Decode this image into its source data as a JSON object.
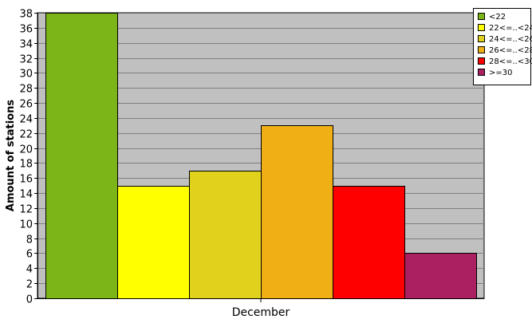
{
  "chart_data": {
    "type": "bar",
    "title": "",
    "xlabel": "",
    "ylabel": "Amount of stations",
    "categories": [
      "December"
    ],
    "ylim": [
      0,
      38
    ],
    "ytick_step": 2,
    "grid": true,
    "legend_position": "top-right",
    "plot_background": "#c0c0c0",
    "series": [
      {
        "name": "<22",
        "values": [
          38
        ],
        "color": "#7cb518"
      },
      {
        "name": "22<=..<24",
        "values": [
          15
        ],
        "color": "#ffff00"
      },
      {
        "name": "24<=..<26",
        "values": [
          17
        ],
        "color": "#e0d21c"
      },
      {
        "name": "26<=..<28",
        "values": [
          23
        ],
        "color": "#f0b015"
      },
      {
        "name": "28<=..<30",
        "values": [
          15
        ],
        "color": "#ff0000"
      },
      {
        "name": ">=30",
        "values": [
          6
        ],
        "color": "#aa2060"
      }
    ]
  }
}
